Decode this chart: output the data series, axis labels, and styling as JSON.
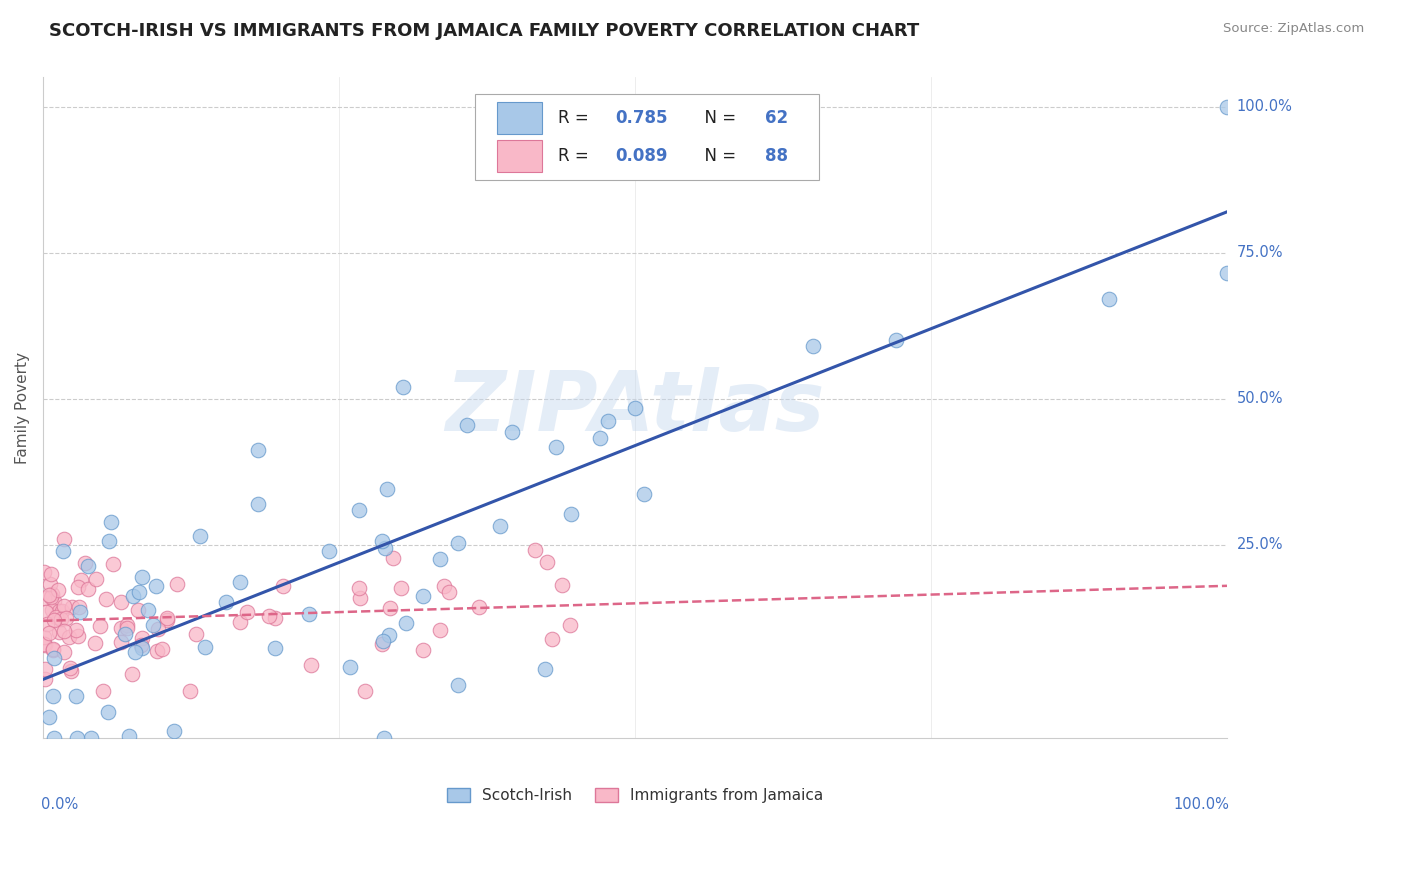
{
  "title": "SCOTCH-IRISH VS IMMIGRANTS FROM JAMAICA FAMILY POVERTY CORRELATION CHART",
  "source": "Source: ZipAtlas.com",
  "ylabel": "Family Poverty",
  "series1_name": "Scotch-Irish",
  "series1_color": "#a8c8e8",
  "series1_edge_color": "#6699cc",
  "series1_R": 0.785,
  "series1_N": 62,
  "series1_line_color": "#3355aa",
  "series2_name": "Immigrants from Jamaica",
  "series2_color": "#f9b8c8",
  "series2_edge_color": "#dd7799",
  "series2_R": 0.089,
  "series2_N": 88,
  "series2_line_color": "#dd6688",
  "watermark": "ZIPAtlas",
  "background_color": "#ffffff",
  "grid_color": "#cccccc",
  "title_color": "#222222",
  "text_blue": "#4472c4",
  "axis_label_color": "#4472c4"
}
